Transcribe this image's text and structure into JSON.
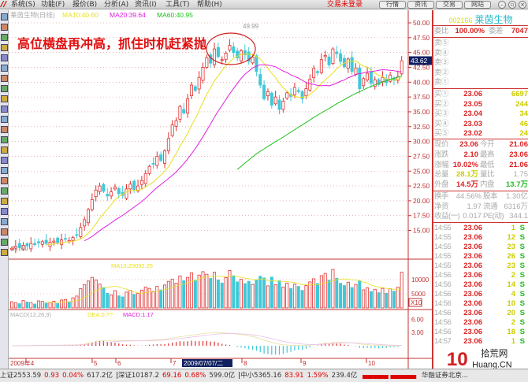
{
  "menubar": {
    "items": [
      "系统(S)",
      "功能(F)",
      "报价(B)",
      "分析(A)",
      "资讯(I)",
      "工具(T)",
      "帮助(H)"
    ],
    "login_status": "交易未登录",
    "buttons": [
      "行情",
      "资讯",
      "交易",
      "网站"
    ],
    "window_controls": [
      "minimize",
      "restore",
      "close"
    ]
  },
  "chart": {
    "title": "莱茵生物(日线)",
    "ma10": "MA10:40.60",
    "ma20": "MA20:39.64",
    "ma60": "MA60:40.95",
    "annotation": "高位横盘再冲高，抓住时机赶紧抛",
    "high_label": "49.99",
    "low_label": "11.91",
    "current_price": "43.62",
    "price_ticks": [
      "50.00",
      "47.50",
      "45.00",
      "42.50",
      "40.00",
      "37.50",
      "35.00",
      "32.50",
      "30.00",
      "27.50",
      "25.00",
      "22.50",
      "20.00",
      "17.50",
      "15.00"
    ],
    "volume_label": "MA10:20092.25",
    "volume_ticks": [
      "10000",
      "5000"
    ],
    "volume_unit": "X10",
    "macd_label": "MACD(12,26,9)",
    "dea_label": "DEA:0.??",
    "macd_value": "MACD:1.17",
    "macd_ticks": [
      "6.00",
      "3.00"
    ],
    "date_labels": [
      "2009年4",
      "5",
      "6",
      "7",
      "8",
      "9",
      "10"
    ],
    "cursor_date": "2009/07/07/二",
    "colors": {
      "up": "#e03030",
      "down": "#40c8d8",
      "ma10": "#e8e020",
      "ma20": "#e020e0",
      "ma60": "#20c020",
      "axis": "#c03030"
    }
  },
  "chart_data": {
    "type": "candlestick",
    "closes": [
      12.0,
      12.3,
      12.1,
      12.5,
      12.4,
      12.8,
      12.6,
      12.9,
      13.1,
      12.8,
      13.0,
      13.2,
      12.9,
      13.4,
      13.6,
      13.3,
      13.8,
      14.2,
      15.5,
      16.8,
      18.5,
      20.2,
      21.8,
      22.5,
      21.6,
      20.8,
      21.5,
      22.3,
      21.2,
      20.9,
      22.0,
      22.8,
      21.9,
      22.5,
      23.4,
      24.6,
      25.8,
      26.2,
      27.5,
      26.8,
      28.4,
      30.5,
      32.8,
      33.5,
      35.9,
      34.8,
      37.2,
      39.5,
      38.6,
      40.8,
      42.5,
      44.1,
      43.2,
      45.6,
      44.3,
      43.8,
      44.9,
      46.2,
      45.0,
      44.1,
      45.3,
      44.6,
      43.5,
      44.2,
      41.8,
      39.5,
      37.2,
      38.4,
      36.1,
      37.5,
      35.4,
      36.8,
      38.2,
      37.6,
      39.1,
      38.4,
      37.2,
      38.9,
      40.5,
      42.3,
      41.6,
      43.8,
      44.5,
      42.9,
      45.6,
      44.8,
      43.5,
      42.6,
      43.9,
      41.8,
      42.4,
      38.9,
      40.6,
      41.5,
      39.8,
      40.4,
      39.6,
      40.8,
      39.9,
      41.2,
      40.3,
      40.9,
      43.6
    ],
    "volumes": [
      2200,
      1800,
      1500,
      2600,
      2100,
      1900,
      1400,
      2500,
      2300,
      1700,
      2000,
      2400,
      1600,
      2800,
      3000,
      2200,
      3600,
      4200,
      6800,
      8200,
      9500,
      10800,
      9900,
      8400,
      7200,
      5200,
      4600,
      6100,
      4300,
      3900,
      5600,
      6200,
      4800,
      5100,
      6300,
      7400,
      6900,
      5800,
      7600,
      6400,
      8100,
      9400,
      10200,
      8700,
      11300,
      9600,
      10800,
      12400,
      9800,
      11600,
      12800,
      11900,
      10400,
      12600,
      9900,
      8800,
      10700,
      13200,
      11400,
      9200,
      10100,
      8600,
      9400,
      8300,
      9900,
      11200,
      10600,
      7800,
      10900,
      8200,
      9600,
      7400,
      8800,
      6900,
      8400,
      7600,
      6200,
      7900,
      9200,
      10300,
      8600,
      11400,
      12200,
      9800,
      13600,
      10500,
      8700,
      7900,
      9100,
      7200,
      8300,
      9600,
      6400,
      7100,
      5800,
      6600,
      5400,
      6900,
      5200,
      6800,
      5900,
      7300,
      12600
    ],
    "price_range": [
      11.91,
      49.99
    ]
  },
  "quote": {
    "code": "002166",
    "name": "莱茵生物",
    "weibi_label": "委比",
    "weibi": "100.00%",
    "weicha_label": "委差",
    "weicha": "7047",
    "sell": [
      {
        "label": "卖⑤"
      },
      {
        "label": "卖④"
      },
      {
        "label": "卖③"
      },
      {
        "label": "卖②"
      },
      {
        "label": "卖①"
      }
    ],
    "buy": [
      {
        "label": "买①",
        "price": "23.06",
        "vol": "6697"
      },
      {
        "label": "买②",
        "price": "23.05",
        "vol": "244"
      },
      {
        "label": "买③",
        "price": "23.04",
        "vol": "34"
      },
      {
        "label": "买④",
        "price": "23.03",
        "vol": "46"
      },
      {
        "label": "买⑤",
        "price": "23.02",
        "vol": "24"
      }
    ],
    "stats": [
      {
        "l1": "现价",
        "v1": "23.06",
        "l2": "今开",
        "v2": "21.06"
      },
      {
        "l1": "涨跌",
        "v1": "2.10",
        "l2": "最高",
        "v2": "23.06"
      },
      {
        "l1": "涨幅",
        "v1": "10.02%",
        "l2": "最低",
        "v2": "21.06"
      },
      {
        "l1": "总量",
        "v1": "28.1万",
        "l2": "量比",
        "v2": "1.75"
      },
      {
        "l1": "外盘",
        "v1": "14.5万",
        "l2": "内盘",
        "v2": "13.7万"
      }
    ],
    "info": [
      {
        "l1": "换手",
        "v1": "44.56%",
        "l2": "股本",
        "v2": "1.30亿"
      },
      {
        "l1": "净资",
        "v1": "1.97",
        "l2": "流通",
        "v2": "6316万"
      },
      {
        "l1": "收益(一)",
        "v1": "0.017",
        "l2": "PE(动)",
        "v2": "344.1"
      }
    ],
    "ticks": [
      {
        "t": "14:55",
        "p": "23.06",
        "v": "1",
        "s": "S"
      },
      {
        "t": "14:55",
        "p": "23.06",
        "v": "12",
        "s": "S"
      },
      {
        "t": "14:55",
        "p": "23.06",
        "v": "23",
        "s": "S"
      },
      {
        "t": "14:55",
        "p": "23.06",
        "v": "26",
        "s": "S"
      },
      {
        "t": "14:55",
        "p": "23.06",
        "v": "23",
        "s": "S"
      },
      {
        "t": "14:56",
        "p": "23.06",
        "v": "2",
        "s": "S"
      },
      {
        "t": "14:56",
        "p": "23.06",
        "v": "14",
        "s": "S"
      },
      {
        "t": "14:56",
        "p": "23.06",
        "v": "4",
        "s": "S"
      },
      {
        "t": "14:56",
        "p": "23.06",
        "v": "10",
        "s": "S"
      },
      {
        "t": "14:56",
        "p": "23.06",
        "v": "20",
        "s": "S"
      },
      {
        "t": "14:56",
        "p": "23.06",
        "v": "2",
        "s": "S"
      },
      {
        "t": "14:56",
        "p": "23.06",
        "v": "18",
        "s": "S"
      },
      {
        "t": "14:57",
        "p": "23.06",
        "v": "1",
        "s": "S"
      }
    ]
  },
  "status": {
    "sh": "上证2553.59",
    "sh_chg": "0.93",
    "sh_pct": "0.04%",
    "sh_amt": "617.2亿",
    "sz": "深证10187.2",
    "sz_chg": "69.16",
    "sz_pct": "0.68%",
    "sz_amt": "599.0亿",
    "zx": "中小5365.16",
    "zx_chg": "83.91",
    "zx_pct": "1.59%",
    "zx_amt": "239.4亿",
    "broker": "华融证券北京..."
  },
  "watermark": {
    "text": "10 拾荒网 Huang.CN"
  }
}
